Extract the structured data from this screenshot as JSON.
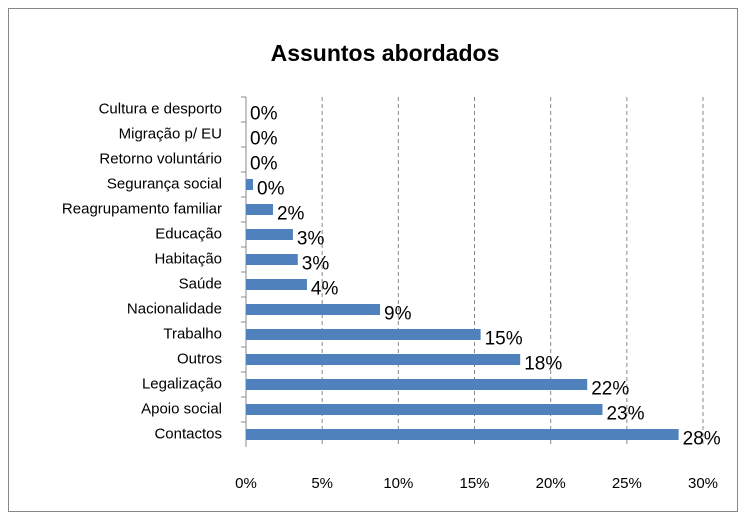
{
  "chart_data": {
    "type": "barh",
    "title": "Assuntos abordados",
    "categories": [
      "Cultura e desporto",
      "Migração p/ EU",
      "Retorno voluntário",
      "Segurança social",
      "Reagrupamento familiar",
      "Educação",
      "Habitação",
      "Saúde",
      "Nacionalidade",
      "Trabalho",
      "Outros",
      "Legalização",
      "Apoio social",
      "Contactos"
    ],
    "values": [
      0,
      0,
      0,
      0.46,
      1.77,
      3.08,
      3.4,
      4.0,
      8.8,
      15.4,
      18.0,
      22.4,
      23.4,
      28.4
    ],
    "value_labels": [
      "0%",
      "0%",
      "0%",
      "0%",
      "2%",
      "3%",
      "3%",
      "4%",
      "9%",
      "15%",
      "18%",
      "22%",
      "23%",
      "28%"
    ],
    "color": "#4f81bd",
    "xlim": [
      0,
      30
    ],
    "xticks": [
      {
        "value": 0,
        "label": "0%"
      },
      {
        "value": 5,
        "label": "5%"
      },
      {
        "value": 10,
        "label": "10%"
      },
      {
        "value": 15,
        "label": "15%"
      },
      {
        "value": 20,
        "label": "20%"
      },
      {
        "value": 25,
        "label": "25%"
      },
      {
        "value": 30,
        "label": "30%"
      }
    ],
    "grid": true
  }
}
